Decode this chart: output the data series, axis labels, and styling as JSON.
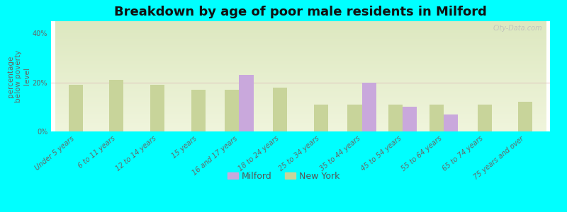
{
  "title": "Breakdown by age of poor male residents in Milford",
  "ylabel": "percentage\nbelow poverty\nlevel",
  "background_color": "#00FFFF",
  "categories": [
    "Under 5 years",
    "6 to 11 years",
    "12 to 14 years",
    "15 years",
    "16 and 17 years",
    "18 to 24 years",
    "25 to 34 years",
    "35 to 44 years",
    "45 to 54 years",
    "55 to 64 years",
    "65 to 74 years",
    "75 years and over"
  ],
  "milford_values": [
    null,
    null,
    null,
    null,
    23.0,
    null,
    null,
    20.0,
    10.0,
    7.0,
    null,
    null
  ],
  "newyork_values": [
    19.0,
    21.0,
    19.0,
    17.0,
    17.0,
    18.0,
    11.0,
    11.0,
    11.0,
    11.0,
    11.0,
    12.0
  ],
  "milford_color": "#c9a8dc",
  "newyork_color": "#c8d49a",
  "bar_width": 0.35,
  "ylim": [
    0,
    45
  ],
  "yticks": [
    0,
    20,
    40
  ],
  "ytick_labels": [
    "0%",
    "20%",
    "40%"
  ],
  "title_fontsize": 13,
  "axis_label_fontsize": 7.5,
  "tick_fontsize": 7,
  "legend_milford": "Milford",
  "legend_newyork": "New York",
  "watermark": "City-Data.com"
}
